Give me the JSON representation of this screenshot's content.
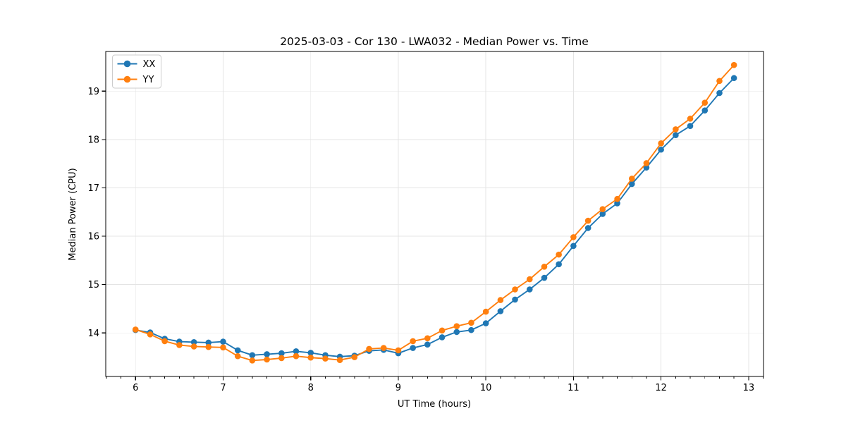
{
  "figure": {
    "background": "#ffffff",
    "frame_color": "#000000",
    "grid_color": "#e4e4e4"
  },
  "chart_data": {
    "type": "line",
    "title": "2025-03-03 - Cor 130 - LWA032 - Median Power vs. Time",
    "xlabel": "UT Time (hours)",
    "ylabel": "Median Power (CPU)",
    "xlim": [
      5.66,
      13.17
    ],
    "ylim": [
      13.1,
      19.82
    ],
    "x_major_ticks": [
      6,
      7,
      8,
      9,
      10,
      11,
      12,
      13
    ],
    "y_major_ticks": [
      14,
      15,
      16,
      17,
      18,
      19
    ],
    "x_minor_step": 0.1666667,
    "grid": true,
    "legend_position": "upper-left",
    "marker": "circle",
    "x": [
      6,
      6.167,
      6.333,
      6.5,
      6.667,
      6.833,
      7,
      7.167,
      7.333,
      7.5,
      7.667,
      7.833,
      8,
      8.167,
      8.333,
      8.5,
      8.667,
      8.833,
      9,
      9.167,
      9.333,
      9.5,
      9.667,
      9.833,
      10,
      10.167,
      10.333,
      10.5,
      10.667,
      10.833,
      11,
      11.167,
      11.333,
      11.5,
      11.667,
      11.833,
      12,
      12.167,
      12.333,
      12.5,
      12.667,
      12.833
    ],
    "series": [
      {
        "name": "XX",
        "color": "#1f77b4",
        "values": [
          14.06,
          14.01,
          13.88,
          13.82,
          13.81,
          13.8,
          13.82,
          13.64,
          13.54,
          13.56,
          13.58,
          13.62,
          13.59,
          13.54,
          13.51,
          13.53,
          13.63,
          13.65,
          13.58,
          13.69,
          13.76,
          13.91,
          14.02,
          14.06,
          14.2,
          14.45,
          14.69,
          14.9,
          15.14,
          15.42,
          15.8,
          16.17,
          16.46,
          16.68,
          17.08,
          17.42,
          17.79,
          18.09,
          18.28,
          18.6,
          18.96,
          19.27
        ]
      },
      {
        "name": "YY",
        "color": "#ff7f0e",
        "values": [
          14.07,
          13.97,
          13.83,
          13.75,
          13.72,
          13.71,
          13.7,
          13.52,
          13.43,
          13.45,
          13.48,
          13.52,
          13.49,
          13.47,
          13.44,
          13.5,
          13.67,
          13.69,
          13.64,
          13.83,
          13.89,
          14.05,
          14.14,
          14.21,
          14.44,
          14.68,
          14.9,
          15.11,
          15.37,
          15.62,
          15.98,
          16.32,
          16.56,
          16.77,
          17.19,
          17.51,
          17.92,
          18.21,
          18.43,
          18.76,
          19.21,
          19.54
        ]
      }
    ]
  }
}
